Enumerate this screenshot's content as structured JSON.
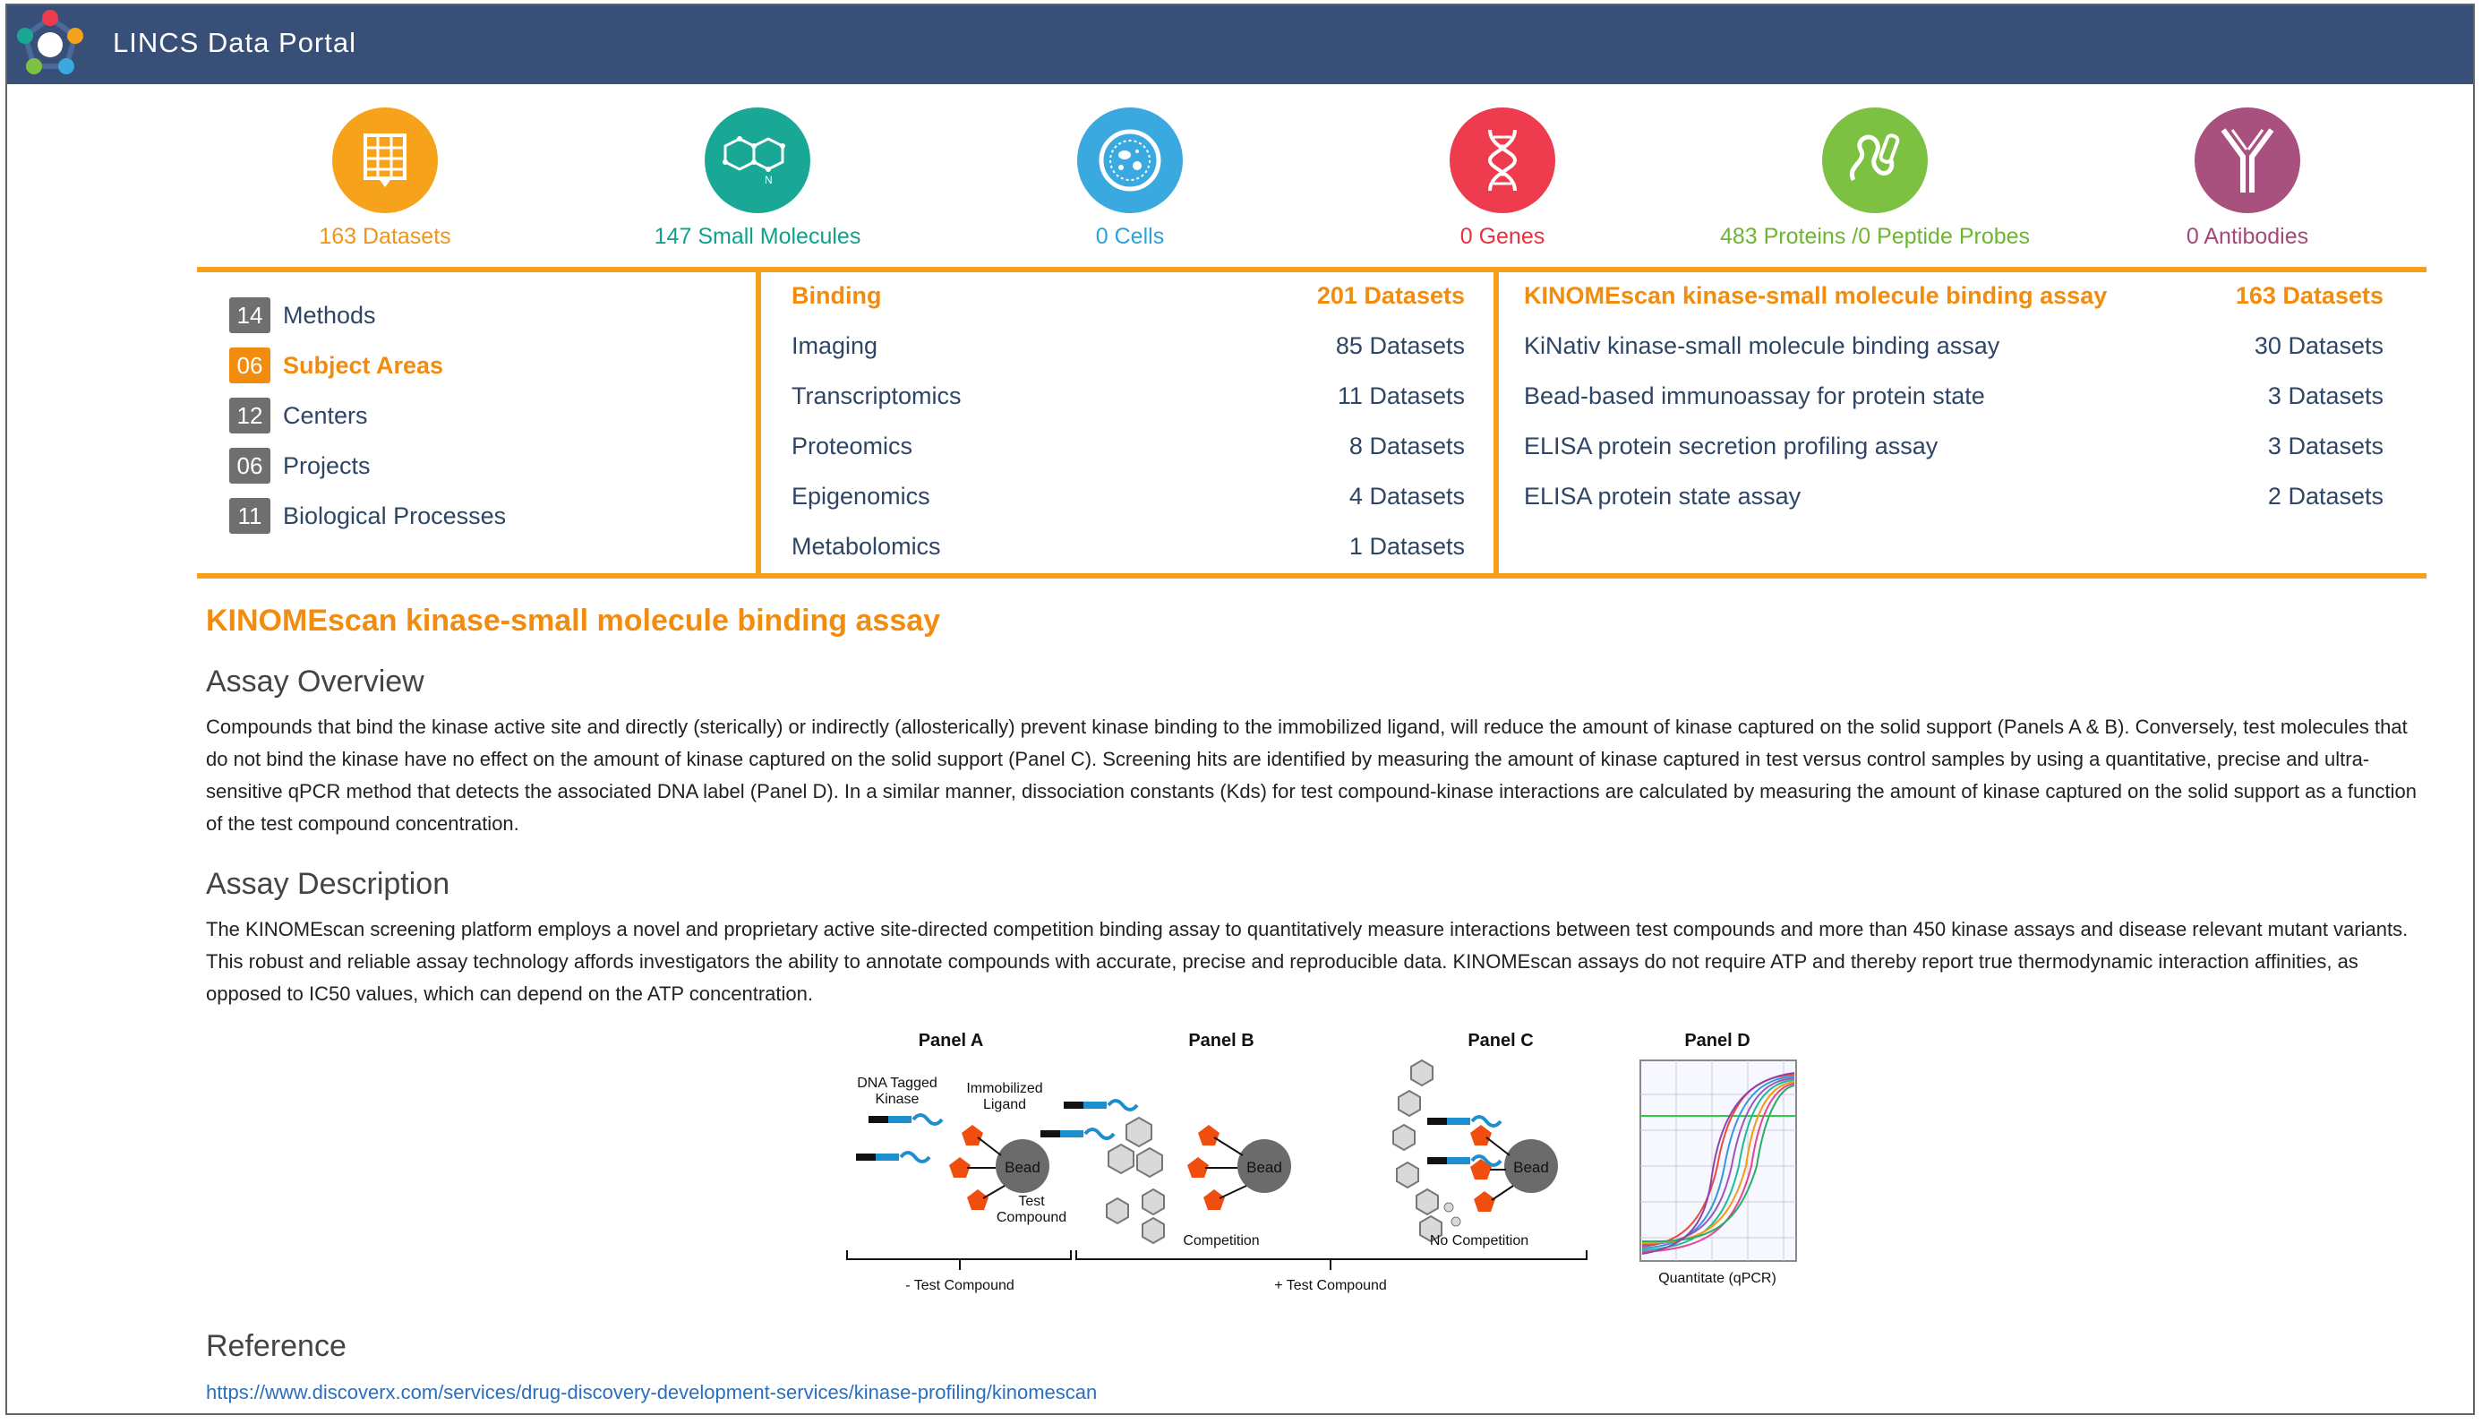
{
  "app": {
    "title": "LINCS Data Portal"
  },
  "categories": [
    {
      "label": "163 Datasets",
      "color": "#f7a21b",
      "icon": "table-icon"
    },
    {
      "label": "147 Small Molecules",
      "color": "#1aa896",
      "icon": "molecule-icon"
    },
    {
      "label": "0 Cells",
      "color": "#3aa9e0",
      "icon": "cell-icon"
    },
    {
      "label": "0 Genes",
      "color": "#ee3c4e",
      "icon": "dna-icon"
    },
    {
      "label": "483 Proteins /0 Peptide Probes",
      "color": "#7dc142",
      "icon": "protein-icon"
    },
    {
      "label": "0 Antibodies",
      "color": "#a8507e",
      "icon": "antibody-icon"
    }
  ],
  "nav": [
    {
      "count": "14",
      "label": "Methods"
    },
    {
      "count": "06",
      "label": "Subject Areas",
      "active": true
    },
    {
      "count": "12",
      "label": "Centers"
    },
    {
      "count": "06",
      "label": "Projects"
    },
    {
      "count": "11",
      "label": "Biological Processes"
    }
  ],
  "subject_areas": [
    {
      "name": "Binding",
      "count": "201 Datasets",
      "active": true
    },
    {
      "name": "Imaging",
      "count": "85 Datasets"
    },
    {
      "name": "Transcriptomics",
      "count": "11 Datasets"
    },
    {
      "name": "Proteomics",
      "count": "8 Datasets"
    },
    {
      "name": "Epigenomics",
      "count": "4 Datasets"
    },
    {
      "name": "Metabolomics",
      "count": "1 Datasets"
    }
  ],
  "assays": [
    {
      "name": "KINOMEscan kinase-small molecule binding assay",
      "count": "163 Datasets",
      "active": true
    },
    {
      "name": "KiNativ kinase-small molecule binding assay",
      "count": "30 Datasets"
    },
    {
      "name": "Bead-based immunoassay for protein state",
      "count": "3 Datasets"
    },
    {
      "name": "ELISA protein secretion profiling assay",
      "count": "3 Datasets"
    },
    {
      "name": "ELISA protein state assay",
      "count": "2 Datasets"
    }
  ],
  "detail": {
    "title": "KINOMEscan kinase-small molecule binding assay",
    "overview_heading": "Assay Overview",
    "overview_text": "Compounds that bind the kinase active site and directly (sterically) or indirectly (allosterically) prevent kinase binding to the immobilized ligand, will reduce the amount of kinase captured on the solid support (Panels A & B). Conversely, test molecules that do not bind the kinase have no effect on the amount of kinase captured on the solid support (Panel C). Screening hits are identified by measuring the amount of kinase captured in test versus control samples by using a quantitative, precise and ultra-sensitive qPCR method that detects the associated DNA label (Panel D). In a similar manner, dissociation constants (Kds) for test compound-kinase interactions are calculated by measuring the amount of kinase captured on the solid support as a function of the test compound concentration.",
    "description_heading": "Assay Description",
    "description_text": "The KINOMEscan screening platform employs a novel and proprietary active site-directed competition binding assay to quantitatively measure interactions between test compounds and more than 450 kinase assays and disease relevant mutant variants. This robust and reliable assay technology affords investigators the ability to annotate compounds with accurate, precise and reproducible data. KINOMEscan assays do not require ATP and thereby report true thermodynamic interaction affinities, as opposed to IC50 values, which can depend on the ATP concentration.",
    "reference_heading": "Reference",
    "reference_url": "https://www.discoverx.com/services/drug-discovery-development-services/kinase-profiling/kinomescan"
  },
  "figure": {
    "panel_a": "Panel A",
    "panel_b": "Panel B",
    "panel_c": "Panel C",
    "panel_d": "Panel D",
    "dna_tagged": "DNA Tagged",
    "kinase": "Kinase",
    "immobilized": "Immobilized",
    "ligand": "Ligand",
    "bead": "Bead",
    "test": "Test",
    "compound": "Compound",
    "competition": "Competition",
    "no_competition": "No Competition",
    "minus_test": "- Test Compound",
    "plus_test": "+ Test Compound",
    "quantitate": "Quantitate (qPCR)"
  }
}
